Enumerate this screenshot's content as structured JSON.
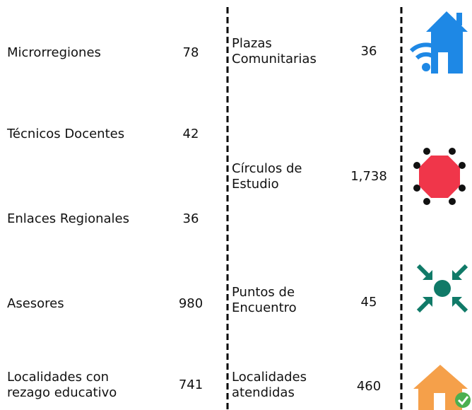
{
  "left": [
    {
      "label": "Microrregiones",
      "value": 78
    },
    {
      "label": "Técnicos Docentes",
      "value": 42
    },
    {
      "label": "Enlaces Regionales",
      "value": 36
    },
    {
      "label": "Asesores",
      "value": 980
    },
    {
      "label": "Localidades con rezago educativo",
      "value": 741
    }
  ],
  "right": [
    {
      "label": "Plazas Comunitarias",
      "value": 36
    },
    {
      "label": "Círculos de Estudio",
      "value": "1,738"
    },
    {
      "label": "Puntos de Encuentro",
      "value": 45
    },
    {
      "label": "Localidades atendidas",
      "value": 460
    }
  ]
}
